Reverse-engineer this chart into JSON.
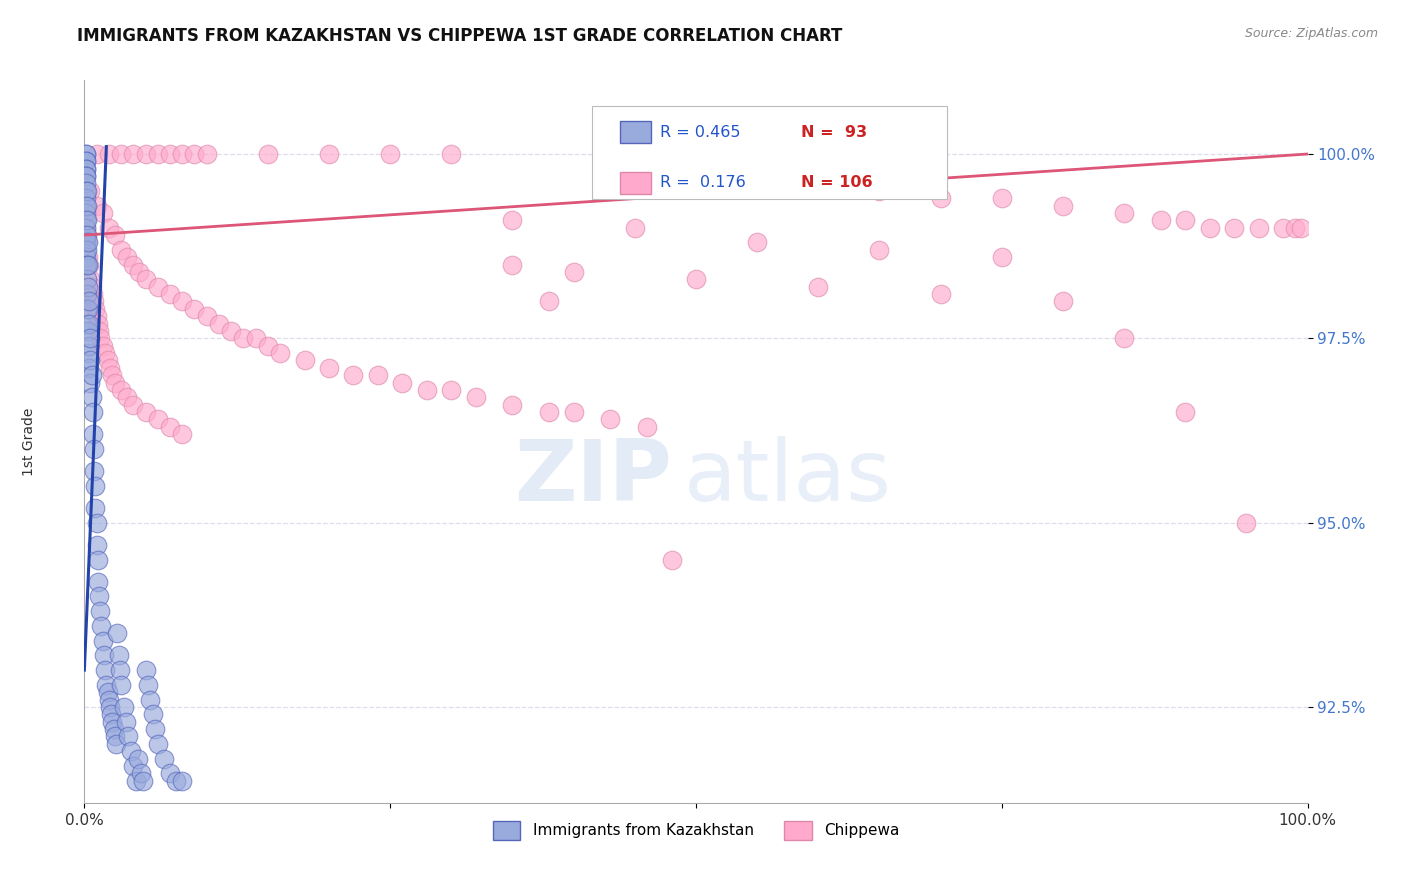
{
  "title": "IMMIGRANTS FROM KAZAKHSTAN VS CHIPPEWA 1ST GRADE CORRELATION CHART",
  "source_text": "Source: ZipAtlas.com",
  "ylabel": "1st Grade",
  "x_min": 0.0,
  "x_max": 1.0,
  "y_min": 91.2,
  "y_max": 101.0,
  "y_ticks": [
    92.5,
    95.0,
    97.5,
    100.0
  ],
  "blue_color": "#99AADD",
  "blue_edge_color": "#5566BB",
  "pink_color": "#FFAACC",
  "pink_edge_color": "#DD88AA",
  "blue_line_color": "#2244AA",
  "pink_line_color": "#DD5577",
  "R_blue": 0.465,
  "N_blue": 93,
  "R_pink": 0.176,
  "N_pink": 106,
  "title_fontsize": 12,
  "watermark_zip": "ZIP",
  "watermark_atlas": "atlas",
  "watermark_color_zip": "#C8D8EE",
  "watermark_color_atlas": "#C8D8EE",
  "background_color": "#FFFFFF",
  "grid_color": "#DDDDEE",
  "legend_text_color": "#2255CC",
  "legend_N_color": "#CC2222",
  "blue_x": [
    0.001,
    0.001,
    0.001,
    0.001,
    0.001,
    0.001,
    0.001,
    0.001,
    0.001,
    0.001,
    0.001,
    0.001,
    0.001,
    0.001,
    0.001,
    0.001,
    0.001,
    0.001,
    0.001,
    0.001,
    0.002,
    0.002,
    0.002,
    0.002,
    0.002,
    0.002,
    0.002,
    0.002,
    0.002,
    0.002,
    0.003,
    0.003,
    0.003,
    0.003,
    0.003,
    0.003,
    0.004,
    0.004,
    0.004,
    0.004,
    0.005,
    0.005,
    0.005,
    0.006,
    0.006,
    0.007,
    0.007,
    0.008,
    0.008,
    0.009,
    0.009,
    0.01,
    0.01,
    0.011,
    0.011,
    0.012,
    0.013,
    0.014,
    0.015,
    0.016,
    0.017,
    0.018,
    0.019,
    0.02,
    0.021,
    0.022,
    0.023,
    0.024,
    0.025,
    0.026,
    0.027,
    0.028,
    0.029,
    0.03,
    0.032,
    0.034,
    0.036,
    0.038,
    0.04,
    0.042,
    0.044,
    0.046,
    0.048,
    0.05,
    0.052,
    0.054,
    0.056,
    0.058,
    0.06,
    0.065,
    0.07,
    0.075,
    0.08
  ],
  "blue_y": [
    100.0,
    100.0,
    99.9,
    99.9,
    99.8,
    99.8,
    99.7,
    99.7,
    99.6,
    99.5,
    99.4,
    99.3,
    99.2,
    99.1,
    99.0,
    98.9,
    98.8,
    98.7,
    98.6,
    98.5,
    99.5,
    99.3,
    99.1,
    98.9,
    98.7,
    98.5,
    98.3,
    98.1,
    97.9,
    97.7,
    98.8,
    98.5,
    98.2,
    97.9,
    97.6,
    97.3,
    98.0,
    97.7,
    97.4,
    97.1,
    97.5,
    97.2,
    96.9,
    97.0,
    96.7,
    96.5,
    96.2,
    96.0,
    95.7,
    95.5,
    95.2,
    95.0,
    94.7,
    94.5,
    94.2,
    94.0,
    93.8,
    93.6,
    93.4,
    93.2,
    93.0,
    92.8,
    92.7,
    92.6,
    92.5,
    92.4,
    92.3,
    92.2,
    92.1,
    92.0,
    93.5,
    93.2,
    93.0,
    92.8,
    92.5,
    92.3,
    92.1,
    91.9,
    91.7,
    91.5,
    91.8,
    91.6,
    91.5,
    93.0,
    92.8,
    92.6,
    92.4,
    92.2,
    92.0,
    91.8,
    91.6,
    91.5,
    91.5
  ],
  "pink_x": [
    0.005,
    0.01,
    0.015,
    0.02,
    0.025,
    0.03,
    0.035,
    0.04,
    0.045,
    0.05,
    0.06,
    0.07,
    0.08,
    0.09,
    0.1,
    0.11,
    0.12,
    0.13,
    0.14,
    0.15,
    0.16,
    0.18,
    0.2,
    0.22,
    0.24,
    0.26,
    0.28,
    0.3,
    0.32,
    0.35,
    0.38,
    0.4,
    0.43,
    0.46,
    0.5,
    0.55,
    0.6,
    0.65,
    0.7,
    0.75,
    0.8,
    0.85,
    0.88,
    0.9,
    0.92,
    0.94,
    0.96,
    0.98,
    0.99,
    0.995,
    0.01,
    0.02,
    0.03,
    0.04,
    0.05,
    0.06,
    0.07,
    0.08,
    0.09,
    0.1,
    0.15,
    0.2,
    0.25,
    0.3,
    0.001,
    0.002,
    0.003,
    0.004,
    0.005,
    0.006,
    0.007,
    0.008,
    0.009,
    0.01,
    0.011,
    0.012,
    0.013,
    0.015,
    0.017,
    0.019,
    0.021,
    0.023,
    0.025,
    0.03,
    0.035,
    0.04,
    0.05,
    0.06,
    0.07,
    0.08,
    0.35,
    0.4,
    0.5,
    0.6,
    0.7,
    0.8,
    0.9,
    0.95,
    0.85,
    0.75,
    0.65,
    0.55,
    0.45,
    0.35,
    0.48,
    0.38
  ],
  "pink_y": [
    99.5,
    99.3,
    99.2,
    99.0,
    98.9,
    98.7,
    98.6,
    98.5,
    98.4,
    98.3,
    98.2,
    98.1,
    98.0,
    97.9,
    97.8,
    97.7,
    97.6,
    97.5,
    97.5,
    97.4,
    97.3,
    97.2,
    97.1,
    97.0,
    97.0,
    96.9,
    96.8,
    96.8,
    96.7,
    96.6,
    96.5,
    96.5,
    96.4,
    96.3,
    99.8,
    99.7,
    99.6,
    99.5,
    99.4,
    99.4,
    99.3,
    99.2,
    99.1,
    99.1,
    99.0,
    99.0,
    99.0,
    99.0,
    99.0,
    99.0,
    100.0,
    100.0,
    100.0,
    100.0,
    100.0,
    100.0,
    100.0,
    100.0,
    100.0,
    100.0,
    100.0,
    100.0,
    100.0,
    100.0,
    99.0,
    98.8,
    98.6,
    98.5,
    98.3,
    98.2,
    98.1,
    98.0,
    97.9,
    97.8,
    97.7,
    97.6,
    97.5,
    97.4,
    97.3,
    97.2,
    97.1,
    97.0,
    96.9,
    96.8,
    96.7,
    96.6,
    96.5,
    96.4,
    96.3,
    96.2,
    98.5,
    98.4,
    98.3,
    98.2,
    98.1,
    98.0,
    96.5,
    95.0,
    97.5,
    98.6,
    98.7,
    98.8,
    99.0,
    99.1,
    94.5,
    98.0
  ]
}
